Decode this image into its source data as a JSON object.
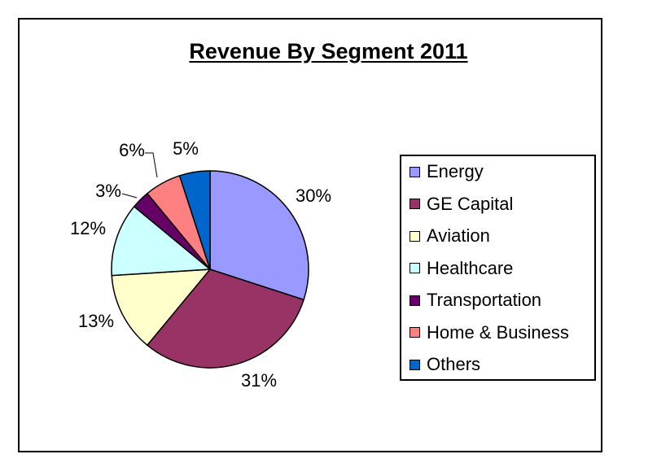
{
  "chart_data": {
    "type": "pie",
    "title": "Revenue By Segment 2011",
    "categories": [
      "Energy",
      "GE Capital",
      "Aviation",
      "Healthcare",
      "Transportation",
      "Home & Business",
      "Others"
    ],
    "values": [
      30,
      31,
      13,
      12,
      3,
      6,
      5
    ],
    "labels": [
      "30%",
      "31%",
      "13%",
      "12%",
      "3%",
      "6%",
      "5%"
    ],
    "colors": [
      "#9999ff",
      "#993366",
      "#ffffcc",
      "#ccffff",
      "#660066",
      "#ff8080",
      "#0066cc"
    ],
    "legend_position": "right"
  }
}
